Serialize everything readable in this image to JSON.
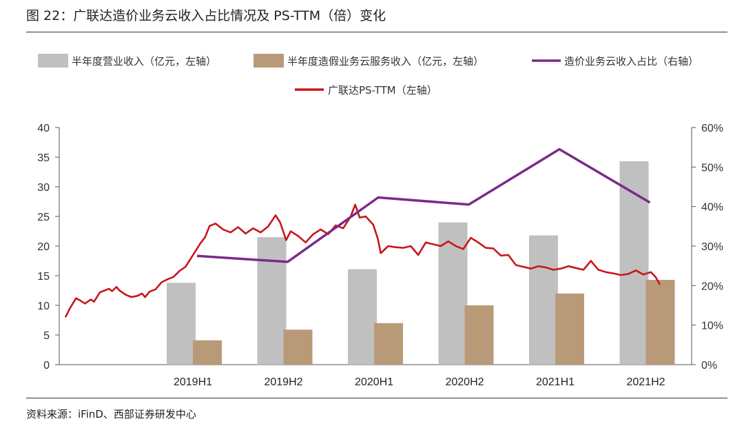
{
  "figure": {
    "title": "图 22：广联达造价业务云收入占比情况及 PS-TTM（倍）变化",
    "source": "资料来源：iFinD、西部证券研发中心"
  },
  "chart_data": {
    "type": "bar+line",
    "categories": [
      "2019H1",
      "2019H2",
      "2020H1",
      "2020H2",
      "2021H1",
      "2021H2"
    ],
    "left_axis": {
      "ylim": [
        0,
        40
      ],
      "ticks": [
        "0",
        "5",
        "10",
        "15",
        "20",
        "25",
        "30",
        "35",
        "40"
      ]
    },
    "right_axis": {
      "ylim": [
        0,
        60
      ],
      "ticks": [
        "0%",
        "10%",
        "20%",
        "30%",
        "40%",
        "50%",
        "60%"
      ]
    },
    "series": [
      {
        "name": "半年度营业收入（亿元，左轴）",
        "type": "bar",
        "axis": "left",
        "color": "#c0c0c0",
        "values": [
          13.8,
          21.5,
          16.1,
          24.0,
          21.8,
          34.3
        ]
      },
      {
        "name": "半年度造假业务云服务收入（亿元，左轴）",
        "type": "bar",
        "axis": "left",
        "color": "#b99a78",
        "values": [
          4.1,
          5.9,
          7.0,
          10.0,
          12.0,
          14.3
        ]
      },
      {
        "name": "造价业务云收入占比（右轴）",
        "type": "line",
        "axis": "right",
        "color": "#7b2a8a",
        "values": [
          27.5,
          26.0,
          42.3,
          40.5,
          54.5,
          41.0
        ]
      },
      {
        "name": "广联达PS-TTM（左轴）",
        "type": "line",
        "axis": "left",
        "color": "#c8161d",
        "anchors": [
          [
            0.0,
            8.0
          ],
          [
            0.03,
            9.5
          ],
          [
            0.07,
            11.2
          ],
          [
            0.1,
            10.8
          ],
          [
            0.13,
            10.3
          ],
          [
            0.17,
            11.0
          ],
          [
            0.19,
            10.6
          ],
          [
            0.23,
            12.2
          ],
          [
            0.26,
            12.5
          ],
          [
            0.29,
            12.8
          ],
          [
            0.31,
            12.4
          ],
          [
            0.34,
            13.1
          ],
          [
            0.36,
            12.5
          ],
          [
            0.4,
            11.8
          ],
          [
            0.44,
            11.4
          ],
          [
            0.48,
            11.6
          ],
          [
            0.51,
            12.0
          ],
          [
            0.53,
            11.4
          ],
          [
            0.56,
            12.3
          ],
          [
            0.6,
            12.7
          ],
          [
            0.64,
            13.9
          ],
          [
            0.68,
            14.4
          ],
          [
            0.72,
            14.8
          ],
          [
            0.76,
            15.8
          ],
          [
            0.8,
            16.5
          ],
          [
            0.85,
            18.5
          ],
          [
            0.9,
            20.5
          ],
          [
            0.93,
            21.5
          ],
          [
            0.96,
            23.4
          ],
          [
            1.0,
            23.8
          ],
          [
            1.05,
            22.8
          ],
          [
            1.1,
            22.3
          ],
          [
            1.15,
            23.2
          ],
          [
            1.2,
            22.1
          ],
          [
            1.25,
            23.0
          ],
          [
            1.3,
            22.3
          ],
          [
            1.35,
            23.3
          ],
          [
            1.4,
            25.2
          ],
          [
            1.43,
            24.0
          ],
          [
            1.47,
            21.0
          ],
          [
            1.5,
            22.5
          ],
          [
            1.55,
            21.7
          ],
          [
            1.6,
            20.6
          ],
          [
            1.65,
            22.0
          ],
          [
            1.7,
            22.8
          ],
          [
            1.75,
            22.0
          ],
          [
            1.8,
            23.5
          ],
          [
            1.85,
            23.0
          ],
          [
            1.9,
            25.0
          ],
          [
            1.93,
            27.0
          ],
          [
            1.96,
            24.8
          ],
          [
            2.0,
            25.0
          ],
          [
            2.05,
            23.6
          ],
          [
            2.08,
            21.3
          ],
          [
            2.1,
            18.8
          ],
          [
            2.15,
            20.0
          ],
          [
            2.2,
            19.8
          ],
          [
            2.25,
            19.7
          ],
          [
            2.3,
            20.0
          ],
          [
            2.35,
            18.5
          ],
          [
            2.4,
            20.6
          ],
          [
            2.45,
            20.3
          ],
          [
            2.5,
            20.0
          ],
          [
            2.55,
            20.8
          ],
          [
            2.6,
            20.0
          ],
          [
            2.65,
            19.5
          ],
          [
            2.7,
            21.4
          ],
          [
            2.75,
            20.6
          ],
          [
            2.8,
            19.7
          ],
          [
            2.85,
            19.6
          ],
          [
            2.9,
            18.4
          ],
          [
            2.95,
            18.5
          ],
          [
            3.0,
            16.8
          ],
          [
            3.05,
            16.5
          ],
          [
            3.1,
            16.2
          ],
          [
            3.15,
            16.6
          ],
          [
            3.2,
            16.4
          ],
          [
            3.25,
            16.0
          ],
          [
            3.3,
            16.2
          ],
          [
            3.35,
            16.6
          ],
          [
            3.4,
            16.3
          ],
          [
            3.45,
            16.0
          ],
          [
            3.5,
            17.5
          ],
          [
            3.55,
            16.0
          ],
          [
            3.6,
            15.6
          ],
          [
            3.65,
            15.4
          ],
          [
            3.7,
            15.1
          ],
          [
            3.75,
            15.3
          ],
          [
            3.8,
            15.9
          ],
          [
            3.85,
            15.2
          ],
          [
            3.9,
            15.6
          ],
          [
            3.93,
            14.8
          ],
          [
            3.96,
            13.5
          ]
        ]
      }
    ],
    "legend_placement": "top",
    "grid": false
  }
}
